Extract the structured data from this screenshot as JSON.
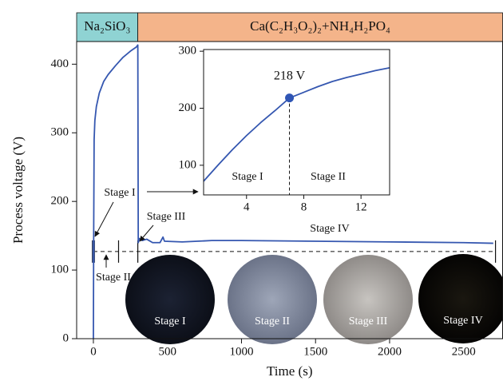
{
  "chart_data": [
    {
      "type": "line",
      "phases": [
        {
          "label": "Na₂SiO₃",
          "end": 300,
          "color": "#8fd3d3"
        },
        {
          "label": "Ca(C₂H₃O₂)₂+NH₄H₂PO₄",
          "color": "#f4b48a"
        }
      ],
      "x_label": "Time (s)",
      "y_label": "Process voltage (V)",
      "xlim": [
        -113,
        2763
      ],
      "xticks": [
        0,
        500,
        1000,
        1500,
        2000,
        2500
      ],
      "ylim": [
        0,
        433
      ],
      "yticks": [
        0,
        100,
        200,
        300,
        400
      ],
      "series": [
        {
          "color": "#3557b0",
          "x": [
            0,
            2,
            5,
            10,
            20,
            40,
            70,
            100,
            150,
            200,
            250,
            290,
            300,
            303,
            310,
            330,
            360,
            400,
            450,
            470,
            480,
            600,
            800,
            1000,
            1500,
            2000,
            2500,
            2700
          ],
          "values": [
            0,
            150,
            290,
            318,
            338,
            358,
            375,
            385,
            398,
            410,
            419,
            425,
            428,
            140,
            146,
            143,
            145,
            140,
            140,
            148,
            142,
            141,
            143,
            143,
            142,
            141,
            140,
            139
          ]
        }
      ],
      "stage_boundaries": [
        0,
        170,
        300,
        2715
      ],
      "stage_level": 127,
      "annotations": [
        "Stage I",
        "Stage III",
        "Stage II",
        "Stage IV"
      ],
      "photos": [
        "Stage I",
        "Stage II",
        "Stage III",
        "Stage IV"
      ]
    },
    {
      "type": "line",
      "xlim": [
        1,
        14
      ],
      "xticks": [
        4,
        8,
        12
      ],
      "ylim": [
        48,
        303
      ],
      "yticks": [
        100,
        200,
        300
      ],
      "series": [
        {
          "color": "#3557b0",
          "x": [
            1,
            2,
            3,
            4,
            5,
            6,
            7,
            8,
            9,
            10,
            11,
            12,
            13,
            14
          ],
          "values": [
            72,
            100,
            127,
            152,
            175,
            196,
            218,
            228,
            238,
            247,
            254,
            260,
            266,
            271
          ]
        }
      ],
      "highlight": {
        "x": 7,
        "value": 218,
        "label": "218 V"
      },
      "annotations": [
        "Stage I",
        "Stage II"
      ]
    }
  ]
}
